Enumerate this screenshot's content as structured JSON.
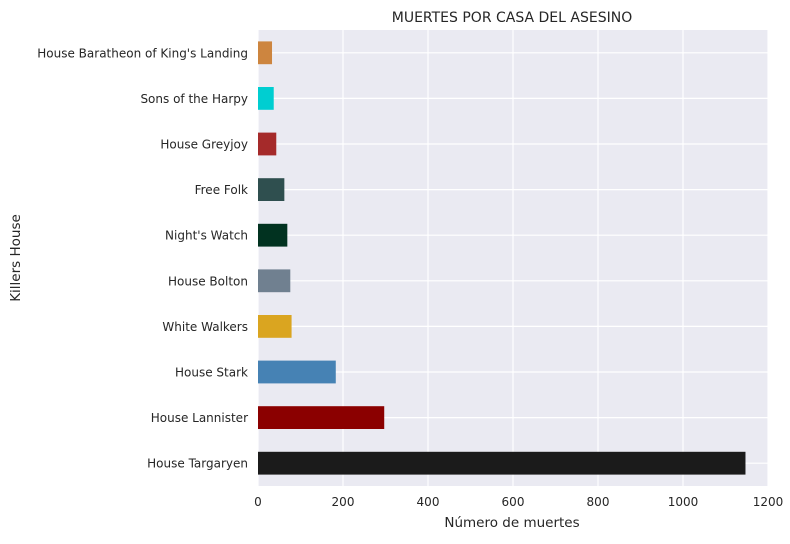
{
  "chart_data": {
    "type": "bar",
    "orientation": "horizontal",
    "title": "MUERTES POR CASA DEL ASESINO",
    "xlabel": "Número de muertes",
    "ylabel": "Killers House",
    "xlim": [
      0,
      1200
    ],
    "xticks": [
      0,
      200,
      400,
      600,
      800,
      1000,
      1200
    ],
    "grid": true,
    "categories": [
      "House Targaryen",
      "House Lannister",
      "House Stark",
      "White Walkers",
      "House Bolton",
      "Night's Watch",
      "Free Folk",
      "House Greyjoy",
      "Sons of the Harpy",
      "House Baratheon of King's Landing"
    ],
    "values": [
      1147,
      297,
      183,
      79,
      76,
      69,
      62,
      43,
      37,
      33
    ],
    "colors": [
      "#1b1b1b",
      "#8b0000",
      "#4682b4",
      "#daa520",
      "#708090",
      "#013220",
      "#2f4f4f",
      "#a52a2a",
      "#00ced1",
      "#cd853f"
    ],
    "background": "#eaeaf2",
    "gridColor": "#ffffff"
  }
}
